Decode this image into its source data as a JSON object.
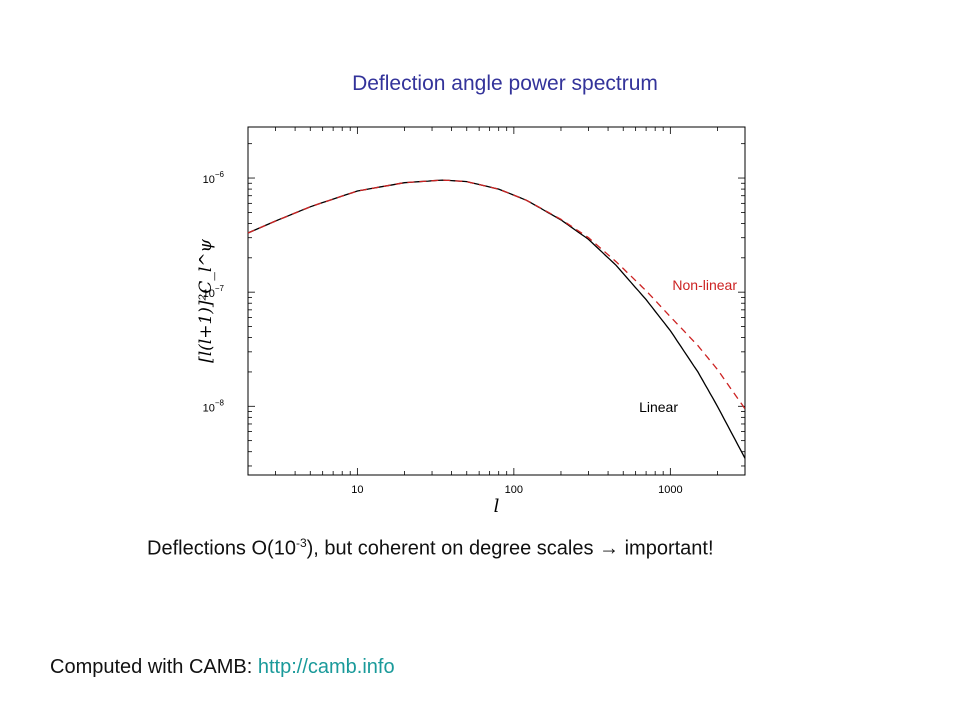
{
  "slide": {
    "title": "Deflection angle power spectrum",
    "caption_before": "Deflections O(10",
    "caption_exp": "-3",
    "caption_after": "), but coherent on degree scales ",
    "caption_arrow": "→",
    "caption_end": " important!",
    "footer_text": "Computed with CAMB: ",
    "footer_link": "http://camb.info"
  },
  "colors": {
    "title": "#33339a",
    "nonlinear": "#cc2222",
    "linear": "#000000",
    "link": "#1a9a9a"
  },
  "chart_data": {
    "type": "line",
    "xscale": "log",
    "yscale": "log",
    "xlim": [
      2,
      3000
    ],
    "ylim": [
      2.5e-09,
      2.8e-06
    ],
    "xticks": [
      {
        "value": 10,
        "label": "10"
      },
      {
        "value": 100,
        "label": "100"
      },
      {
        "value": 1000,
        "label": "1000"
      }
    ],
    "yticks": [
      {
        "value": 1e-08,
        "base": "10",
        "exp": "−8"
      },
      {
        "value": 1e-07,
        "base": "10",
        "exp": "−7"
      },
      {
        "value": 1e-06,
        "base": "10",
        "exp": "−6"
      }
    ],
    "xlabel": "l",
    "ylabel": "[l(l+1)]²C_l^ψ",
    "series": [
      {
        "name": "Linear",
        "style": "solid",
        "color": "#000000",
        "x": [
          2,
          3,
          5,
          10,
          20,
          35,
          50,
          80,
          120,
          200,
          300,
          450,
          700,
          1000,
          1500,
          2000,
          3000
        ],
        "y": [
          3.3e-07,
          4.2e-07,
          5.6e-07,
          7.7e-07,
          9.1e-07,
          9.6e-07,
          9.3e-07,
          8e-07,
          6.4e-07,
          4.3e-07,
          2.9e-07,
          1.72e-07,
          8.6e-08,
          4.6e-08,
          2e-08,
          1e-08,
          3.5e-09
        ]
      },
      {
        "name": "Non-linear",
        "style": "dashed",
        "color": "#cc2222",
        "x": [
          2,
          3,
          5,
          10,
          20,
          35,
          50,
          80,
          120,
          200,
          300,
          450,
          700,
          1000,
          1500,
          2000,
          3000
        ],
        "y": [
          3.3e-07,
          4.2e-07,
          5.6e-07,
          7.7e-07,
          9.1e-07,
          9.6e-07,
          9.3e-07,
          8e-07,
          6.4e-07,
          4.35e-07,
          3e-07,
          1.85e-07,
          1.03e-07,
          6.1e-08,
          3.4e-08,
          2.1e-08,
          9.5e-09
        ]
      }
    ],
    "annotations": [
      {
        "text": "Non-linear",
        "color": "#cc2222",
        "series": "Non-linear"
      },
      {
        "text": "Linear",
        "color": "#000000",
        "series": "Linear"
      }
    ]
  }
}
